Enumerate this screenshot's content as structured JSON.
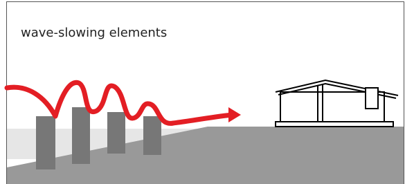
{
  "title": "wave-slowing elements"
}
